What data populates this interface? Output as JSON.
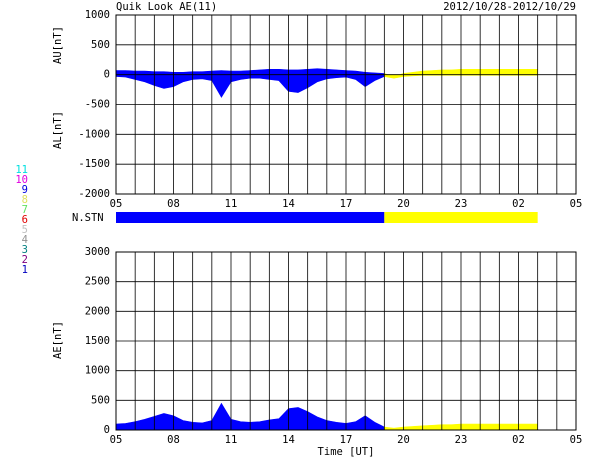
{
  "header": {
    "title": "Quik Look AE(11)",
    "date_range": "2012/10/28-2012/10/29"
  },
  "station_legend": [
    {
      "label": "11",
      "color": "#00e0e0"
    },
    {
      "label": "10",
      "color": "#e000e0"
    },
    {
      "label": "9",
      "color": "#0000e0"
    },
    {
      "label": "8",
      "color": "#e0e060"
    },
    {
      "label": "7",
      "color": "#60e060"
    },
    {
      "label": "6",
      "color": "#e00000"
    },
    {
      "label": "5",
      "color": "#c0c0c0"
    },
    {
      "label": "4",
      "color": "#909090"
    },
    {
      "label": "3",
      "color": "#008080"
    },
    {
      "label": "2",
      "color": "#800080"
    },
    {
      "label": "1",
      "color": "#0000c0"
    }
  ],
  "nstn": {
    "label": "N.STN",
    "segments": [
      {
        "x": [
          0,
          14
        ],
        "color": "#0000ff"
      },
      {
        "x": [
          14,
          22
        ],
        "color": "#ffff00"
      }
    ]
  },
  "chart_data": [
    {
      "type": "area",
      "ylabels": [
        "AU[nT]",
        "AL[nT]"
      ],
      "xlim": [
        0,
        24
      ],
      "ylim": [
        -2000,
        1000
      ],
      "xticks": [
        {
          "value": 0,
          "label": "05"
        },
        {
          "value": 3,
          "label": "08"
        },
        {
          "value": 6,
          "label": "11"
        },
        {
          "value": 9,
          "label": "14"
        },
        {
          "value": 12,
          "label": "17"
        },
        {
          "value": 15,
          "label": "20"
        },
        {
          "value": 18,
          "label": "23"
        },
        {
          "value": 21,
          "label": "02"
        },
        {
          "value": 24,
          "label": "05"
        }
      ],
      "xgrid": [
        0,
        1,
        2,
        3,
        4,
        5,
        6,
        7,
        8,
        9,
        10,
        11,
        12,
        13,
        14,
        15,
        16,
        17,
        18,
        19,
        20,
        21,
        22,
        23,
        24
      ],
      "yticks": [
        -2000,
        -1500,
        -1000,
        -500,
        0,
        500,
        1000
      ],
      "series": [
        {
          "color": "#0000ff",
          "x": [
            0,
            0.5,
            1,
            1.5,
            2,
            2.5,
            3,
            3.5,
            4,
            4.5,
            5,
            5.5,
            6,
            6.5,
            7,
            7.5,
            8,
            8.5,
            9,
            9.5,
            10,
            10.5,
            11,
            11.5,
            12,
            12.5,
            13,
            13.5,
            14
          ],
          "values": [
            70,
            70,
            60,
            60,
            50,
            50,
            40,
            40,
            50,
            50,
            60,
            70,
            60,
            60,
            70,
            80,
            90,
            90,
            80,
            80,
            90,
            100,
            90,
            80,
            70,
            60,
            40,
            30,
            20
          ]
        },
        {
          "color": "#0000ff",
          "x": [
            0,
            0.5,
            1,
            1.5,
            2,
            2.5,
            3,
            3.5,
            4,
            4.5,
            5,
            5.5,
            6,
            6.5,
            7,
            7.5,
            8,
            8.5,
            9,
            9.5,
            10,
            10.5,
            11,
            11.5,
            12,
            12.5,
            13,
            13.5,
            14
          ],
          "values": [
            -30,
            -40,
            -80,
            -120,
            -180,
            -230,
            -200,
            -120,
            -80,
            -70,
            -100,
            -380,
            -120,
            -80,
            -60,
            -60,
            -80,
            -100,
            -280,
            -300,
            -220,
            -120,
            -70,
            -50,
            -40,
            -80,
            -200,
            -100,
            -30
          ]
        },
        {
          "color": "#ffff00",
          "x": [
            14,
            14.5,
            15,
            15.5,
            16,
            16.5,
            17,
            17.5,
            18,
            18.5,
            19,
            19.5,
            20,
            20.5,
            21,
            21.5,
            22
          ],
          "values": [
            20,
            -30,
            20,
            40,
            60,
            70,
            80,
            80,
            90,
            90,
            90,
            90,
            90,
            90,
            90,
            90,
            90
          ]
        },
        {
          "color": "#ffff00",
          "x": [
            14,
            14.5,
            15,
            15.5,
            16,
            16.5,
            17,
            17.5,
            18,
            18.5,
            19,
            19.5,
            20,
            20.5,
            21,
            21.5,
            22
          ],
          "values": [
            -30,
            -60,
            -30,
            -20,
            -10,
            -10,
            -10,
            -10,
            -10,
            -10,
            -10,
            -10,
            -10,
            -10,
            -10,
            -10,
            -10
          ]
        }
      ]
    },
    {
      "type": "area",
      "ylabels": [
        "AE[nT]"
      ],
      "xlabel": "Time [UT]",
      "xlim": [
        0,
        24
      ],
      "ylim": [
        0,
        3000
      ],
      "xticks": [
        {
          "value": 0,
          "label": "05"
        },
        {
          "value": 3,
          "label": "08"
        },
        {
          "value": 6,
          "label": "11"
        },
        {
          "value": 9,
          "label": "14"
        },
        {
          "value": 12,
          "label": "17"
        },
        {
          "value": 15,
          "label": "20"
        },
        {
          "value": 18,
          "label": "23"
        },
        {
          "value": 21,
          "label": "02"
        },
        {
          "value": 24,
          "label": "05"
        }
      ],
      "xgrid": [
        0,
        1,
        2,
        3,
        4,
        5,
        6,
        7,
        8,
        9,
        10,
        11,
        12,
        13,
        14,
        15,
        16,
        17,
        18,
        19,
        20,
        21,
        22,
        23,
        24
      ],
      "yticks": [
        0,
        500,
        1000,
        1500,
        2000,
        2500,
        3000
      ],
      "series": [
        {
          "color": "#0000ff",
          "x": [
            0,
            0.5,
            1,
            1.5,
            2,
            2.5,
            3,
            3.5,
            4,
            4.5,
            5,
            5.5,
            6,
            6.5,
            7,
            7.5,
            8,
            8.5,
            9,
            9.5,
            10,
            10.5,
            11,
            11.5,
            12,
            12.5,
            13,
            13.5,
            14
          ],
          "values": [
            100,
            110,
            140,
            180,
            230,
            280,
            240,
            160,
            130,
            120,
            160,
            450,
            180,
            140,
            130,
            140,
            170,
            190,
            360,
            380,
            310,
            220,
            160,
            130,
            110,
            140,
            240,
            130,
            50
          ]
        },
        {
          "color": "#ffff00",
          "x": [
            14,
            14.5,
            15,
            15.5,
            16,
            16.5,
            17,
            17.5,
            18,
            18.5,
            19,
            19.5,
            20,
            20.5,
            21,
            21.5,
            22
          ],
          "values": [
            50,
            30,
            50,
            60,
            70,
            80,
            90,
            90,
            100,
            100,
            100,
            100,
            100,
            100,
            100,
            100,
            100
          ]
        }
      ]
    }
  ]
}
